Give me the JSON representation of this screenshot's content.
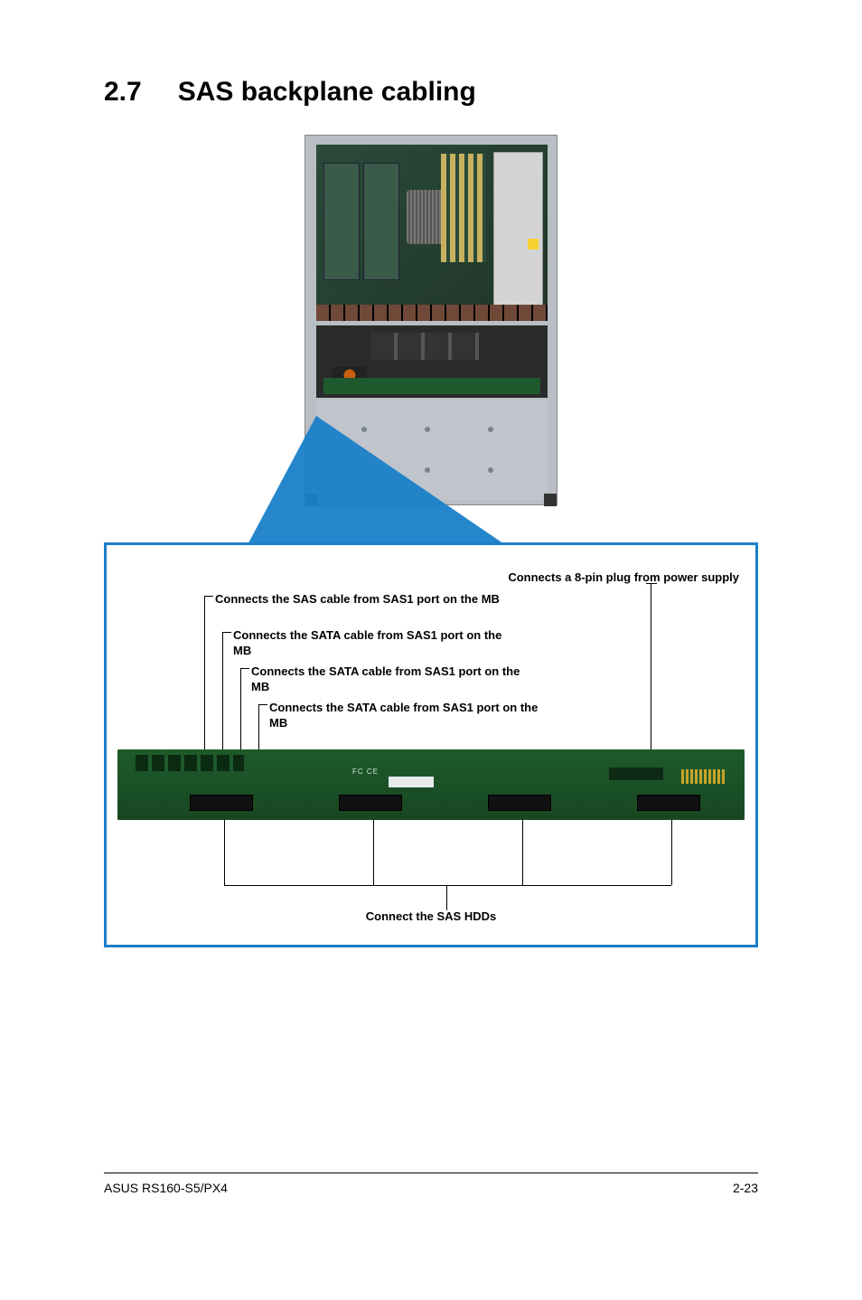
{
  "heading": {
    "number": "2.7",
    "title": "SAS backplane cabling"
  },
  "labels": {
    "power": "Connects a 8-pin plug from power supply",
    "sas": "Connects the SAS cable from SAS1 port on the MB",
    "sata1": "Connects the SATA cable from SAS1 port on the MB",
    "sata2": "Connects the SATA cable from SAS1 port on the MB",
    "sata3": "Connects the SATA cable from SAS1 port on the MB",
    "hdd": "Connect the SAS HDDs"
  },
  "backplane_text": {
    "fc": "FC CE"
  },
  "footer": {
    "left": "ASUS RS160-S5/PX4",
    "right": "2-23"
  },
  "colors": {
    "callout_blue": "#1a7fc8",
    "pcb_green": "#1e5a2b",
    "chassis_grey": "#b8bec4"
  }
}
